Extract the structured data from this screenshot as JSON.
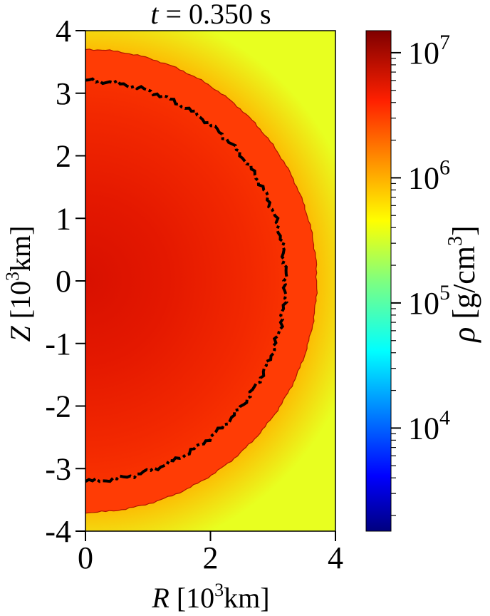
{
  "chart_data": {
    "type": "heatmap",
    "title_var": "t",
    "title_eq": " = ",
    "title_value": "0.350",
    "title_unit": " s",
    "xlabel_var": "R",
    "xlabel_unit_pre": " [10",
    "xlabel_unit_exp": "3",
    "xlabel_unit_post": "km]",
    "ylabel_var": "Z",
    "ylabel_unit_pre": " [10",
    "ylabel_unit_exp": "3",
    "ylabel_unit_post": "km]",
    "xlim": [
      0,
      4
    ],
    "ylim": [
      -4,
      4
    ],
    "x_ticks": [
      0,
      2,
      4
    ],
    "x_tick_labels": [
      "0",
      "2",
      "4"
    ],
    "y_ticks": [
      4,
      3,
      2,
      1,
      0,
      -1,
      -2,
      -3,
      -4
    ],
    "y_tick_labels": [
      "4",
      "3",
      "2",
      "1",
      "0",
      "-1",
      "-2",
      "-3",
      "-4"
    ],
    "colorbar": {
      "label_var": "ρ",
      "label_unit_pre": " [g/cm",
      "label_unit_exp": "3",
      "label_unit_post": "]",
      "scale": "log",
      "range": [
        1500,
        15000000
      ],
      "ticks": [
        {
          "value": 10000,
          "base": "10",
          "exp": "4"
        },
        {
          "value": 100000,
          "base": "10",
          "exp": "5"
        },
        {
          "value": 1000000,
          "base": "10",
          "exp": "6"
        },
        {
          "value": 10000000,
          "base": "10",
          "exp": "7"
        }
      ],
      "colormap": "jet"
    },
    "features": {
      "shock_radius": 3.7,
      "contour_radius": 3.2,
      "contour_style": "dash-dot",
      "contour_color": "#000000"
    }
  }
}
